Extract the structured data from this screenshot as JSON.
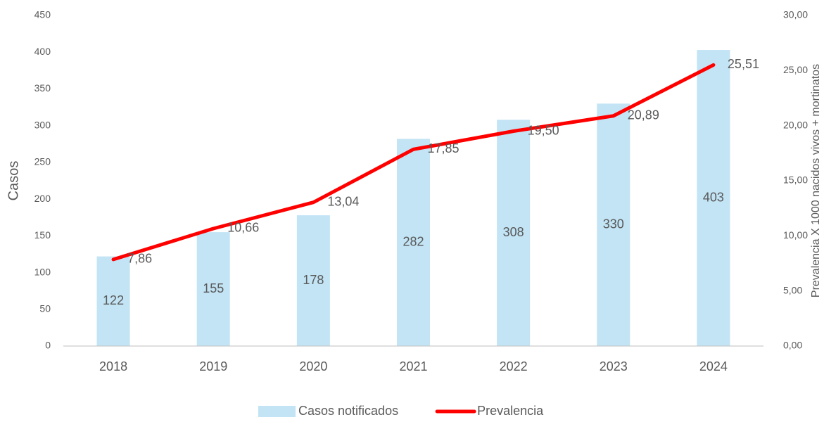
{
  "chart_data": {
    "type": "combo",
    "categories": [
      "2018",
      "2019",
      "2020",
      "2021",
      "2022",
      "2023",
      "2024"
    ],
    "series": [
      {
        "name": "Casos notificados",
        "type": "bar",
        "color": "#c2e4f5",
        "values": [
          122,
          155,
          178,
          282,
          308,
          330,
          403
        ]
      },
      {
        "name": "Prevalencia",
        "type": "line",
        "axis": "y2",
        "color": "#ff0000",
        "values": [
          7.86,
          10.66,
          13.04,
          17.85,
          19.5,
          20.89,
          25.51
        ],
        "value_labels": [
          "7,86",
          "10,66",
          "13,04",
          "17,85",
          "19,50",
          "20,89",
          "25,51"
        ]
      }
    ],
    "ylabel": "Casos",
    "y2label": "Prevalencia X 1000 nacidos vivos + mortinatos",
    "ylim": [
      0,
      450
    ],
    "yticks": [
      0,
      50,
      100,
      150,
      200,
      250,
      300,
      350,
      400,
      450
    ],
    "y2lim": [
      0,
      30
    ],
    "y2ticks": [
      {
        "value": 0,
        "label": "0,00"
      },
      {
        "value": 5,
        "label": "5,00"
      },
      {
        "value": 10,
        "label": "10,00"
      },
      {
        "value": 15,
        "label": "15,00"
      },
      {
        "value": 20,
        "label": "20,00"
      },
      {
        "value": 25,
        "label": "25,00"
      },
      {
        "value": 30,
        "label": "30,00"
      }
    ],
    "grid": false,
    "legend": "bottom"
  }
}
